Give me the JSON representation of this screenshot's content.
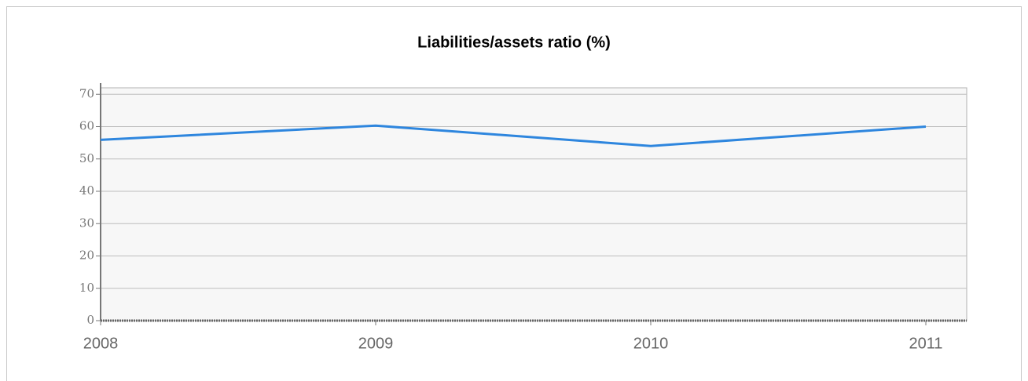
{
  "chart_data": {
    "type": "line",
    "title": "Liabilities/assets ratio (%)",
    "categories": [
      "2008",
      "2009",
      "2010",
      "2011"
    ],
    "series": [
      {
        "color": "#2e86de",
        "values": [
          55.9,
          60.3,
          54.0,
          60.0
        ]
      }
    ],
    "ylim": [
      0,
      72
    ],
    "yticks": [
      0,
      10,
      20,
      30,
      40,
      50,
      60,
      70
    ],
    "grid": true
  }
}
